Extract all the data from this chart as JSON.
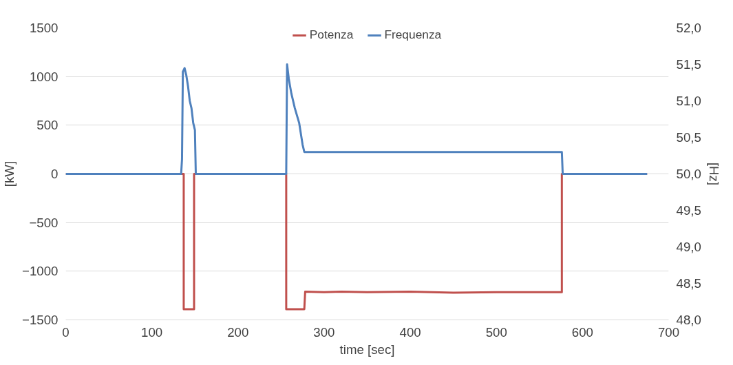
{
  "chart_data": {
    "type": "line",
    "xlabel": "time [sec]",
    "ylabel": "[kW]",
    "y2label": "[Hz]",
    "xlim": [
      0,
      700
    ],
    "xticks": [
      0,
      100,
      200,
      300,
      400,
      500,
      600,
      700
    ],
    "ylim": [
      -1500,
      1500
    ],
    "yticks": [
      -1500,
      -1000,
      -500,
      0,
      500,
      1000,
      1500
    ],
    "y2lim": [
      48,
      52
    ],
    "y2ticks": [
      {
        "value": 48,
        "label": "48,0"
      },
      {
        "value": 48.5,
        "label": "48,5"
      },
      {
        "value": 49,
        "label": "49,0"
      },
      {
        "value": 49.5,
        "label": "49,5"
      },
      {
        "value": 50,
        "label": "50,0"
      },
      {
        "value": 50.5,
        "label": "50,5"
      },
      {
        "value": 51,
        "label": "51,0"
      },
      {
        "value": 51.5,
        "label": "51,5"
      },
      {
        "value": 52,
        "label": "52,0"
      }
    ],
    "grid": "y",
    "legend": "top",
    "marker": "none",
    "line_style": "solid",
    "series": [
      {
        "name": "Potenza",
        "color": "#c0504d",
        "x": [
          0,
          137,
          137,
          149,
          149,
          256,
          256,
          277,
          278,
          300,
          320,
          350,
          400,
          450,
          500,
          550,
          576,
          576,
          675
        ],
        "values": [
          0,
          0,
          -1390,
          -1390,
          0,
          0,
          -1390,
          -1390,
          -1210,
          -1215,
          -1210,
          -1215,
          -1210,
          -1220,
          -1215,
          -1215,
          -1215,
          0,
          0
        ]
      },
      {
        "name": "Frequenza",
        "color": "#4f81bd",
        "axis": "y2",
        "x": [
          0,
          134,
          135,
          136,
          138,
          140,
          142,
          144,
          146,
          148,
          150,
          151,
          255,
          256,
          257,
          259,
          262,
          266,
          271,
          275,
          277,
          576,
          577,
          675
        ],
        "values": [
          50,
          50,
          50.2,
          51.4,
          51.45,
          51.35,
          51.2,
          51.0,
          50.9,
          50.7,
          50.6,
          50,
          50,
          50,
          51.5,
          51.3,
          51.1,
          50.9,
          50.7,
          50.4,
          50.3,
          50.3,
          50,
          50
        ]
      }
    ]
  }
}
